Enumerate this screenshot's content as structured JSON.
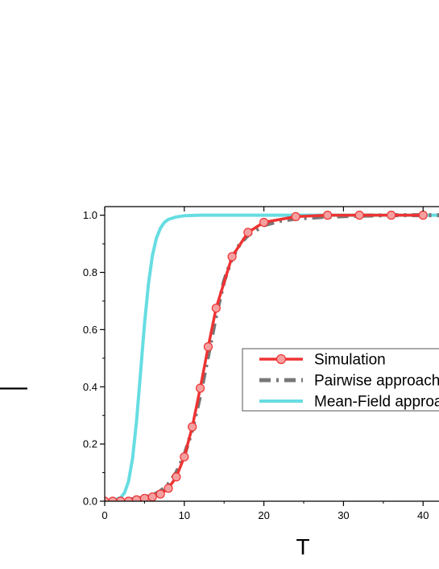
{
  "chart_data": {
    "type": "line",
    "xlabel": "T",
    "xlim": [
      0,
      42
    ],
    "ylim": [
      0,
      1.03
    ],
    "x_ticks": [
      {
        "value": 0,
        "label": "0"
      },
      {
        "value": 10,
        "label": "10"
      },
      {
        "value": 20,
        "label": "20"
      },
      {
        "value": 30,
        "label": "30"
      },
      {
        "value": 40,
        "label": "40"
      }
    ],
    "y_ticks": [
      {
        "value": 0.0,
        "label": "0.0"
      },
      {
        "value": 0.2,
        "label": "0.2"
      },
      {
        "value": 0.4,
        "label": "0.4"
      },
      {
        "value": 0.6,
        "label": "0.6"
      },
      {
        "value": 0.8,
        "label": "0.8"
      },
      {
        "value": 1.0,
        "label": "1.0"
      }
    ],
    "legend_position": "center-right",
    "series": [
      {
        "name": "Simulation",
        "style": "solid-with-circle-markers",
        "color": "#ee3333",
        "marker_fill": "#f4a0a0",
        "x": [
          0,
          1,
          2,
          3,
          4,
          5,
          6,
          7,
          8,
          9,
          10,
          11,
          12,
          13,
          14,
          16,
          18,
          20,
          24,
          28,
          32,
          36,
          40
        ],
        "y": [
          0.0,
          0.0,
          0.0,
          0.0,
          0.005,
          0.01,
          0.015,
          0.025,
          0.045,
          0.085,
          0.155,
          0.26,
          0.395,
          0.54,
          0.675,
          0.855,
          0.94,
          0.975,
          0.995,
          1.0,
          1.0,
          1.0,
          1.0
        ]
      },
      {
        "name": "Pairwise approach",
        "style": "dash-dot",
        "color": "#777777",
        "x": [
          0,
          2,
          4,
          6,
          7,
          8,
          9,
          10,
          11,
          12,
          13,
          14,
          15,
          16,
          17,
          18,
          20,
          22,
          24,
          28,
          32,
          36,
          42
        ],
        "y": [
          0.0,
          0.003,
          0.008,
          0.02,
          0.035,
          0.06,
          0.1,
          0.16,
          0.25,
          0.37,
          0.51,
          0.65,
          0.77,
          0.85,
          0.9,
          0.93,
          0.965,
          0.98,
          0.988,
          0.995,
          0.998,
          1.0,
          1.0
        ]
      },
      {
        "name": "Mean-Field approach",
        "style": "solid",
        "color": "#66dde2",
        "x": [
          0,
          1,
          2,
          2.5,
          3,
          3.5,
          4,
          4.5,
          5,
          5.5,
          6,
          6.5,
          7,
          7.5,
          8,
          9,
          10,
          12,
          15,
          20,
          30,
          42
        ],
        "y": [
          0.0,
          0.003,
          0.012,
          0.03,
          0.07,
          0.15,
          0.28,
          0.45,
          0.62,
          0.76,
          0.86,
          0.92,
          0.955,
          0.975,
          0.985,
          0.994,
          0.998,
          1.0,
          1.0,
          1.0,
          1.0,
          1.0
        ]
      }
    ]
  },
  "y_axis_label_glyph": "—"
}
